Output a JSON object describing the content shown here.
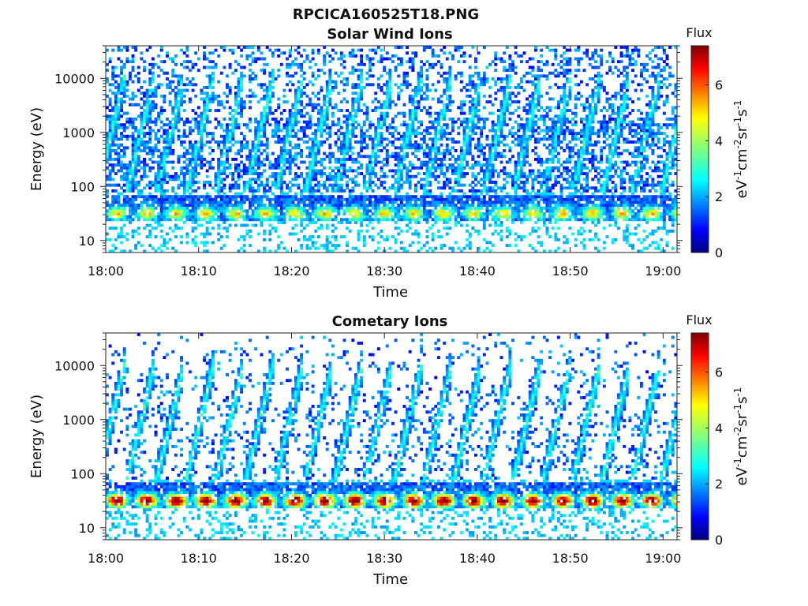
{
  "figure": {
    "title": "RPCICA160525T18.PNG"
  },
  "chart_data": [
    {
      "type": "heatmap",
      "title": "Solar Wind Ions",
      "xlabel": "Time",
      "ylabel": "Energy (eV)",
      "x_ticks": [
        "18:00",
        "18:10",
        "18:20",
        "18:30",
        "18:40",
        "18:50",
        "19:00"
      ],
      "xlim_minutes": [
        0,
        61.5
      ],
      "y_scale": "log",
      "y_ticks": [
        "10",
        "100",
        "1000",
        "10000"
      ],
      "ylim": [
        6,
        40000
      ],
      "colorbar": {
        "label": "Flux",
        "unit_base": "eV",
        "unit_parts": [
          [
            "-1",
            "cm"
          ],
          [
            "-2",
            "sr"
          ],
          [
            "-1",
            "s"
          ],
          [
            "-1",
            ""
          ]
        ],
        "ticks": [
          "0",
          "2",
          "4",
          "6"
        ],
        "range": [
          0,
          7.4
        ],
        "colormap": "jet"
      },
      "sweep_period_min": 3.2,
      "sweep_offset_min": 2.0,
      "low_band_peak": 3.4,
      "background_density": 0.45,
      "seed": 7
    },
    {
      "type": "heatmap",
      "title": "Cometary Ions",
      "xlabel": "Time",
      "ylabel": "Energy (eV)",
      "x_ticks": [
        "18:00",
        "18:10",
        "18:20",
        "18:30",
        "18:40",
        "18:50",
        "19:00"
      ],
      "xlim_minutes": [
        0,
        61.5
      ],
      "y_scale": "log",
      "y_ticks": [
        "10",
        "100",
        "1000",
        "10000"
      ],
      "ylim": [
        6,
        40000
      ],
      "colorbar": {
        "label": "Flux",
        "unit_base": "eV",
        "unit_parts": [
          [
            "-1",
            "cm"
          ],
          [
            "-2",
            "sr"
          ],
          [
            "-1",
            "s"
          ],
          [
            "-1",
            ""
          ]
        ],
        "ticks": [
          "0",
          "2",
          "4",
          "6"
        ],
        "range": [
          0,
          7.4
        ],
        "colormap": "jet"
      },
      "sweep_period_min": 3.2,
      "sweep_offset_min": 2.0,
      "low_band_peak": 6.2,
      "background_density": 0.12,
      "seed": 21
    }
  ]
}
